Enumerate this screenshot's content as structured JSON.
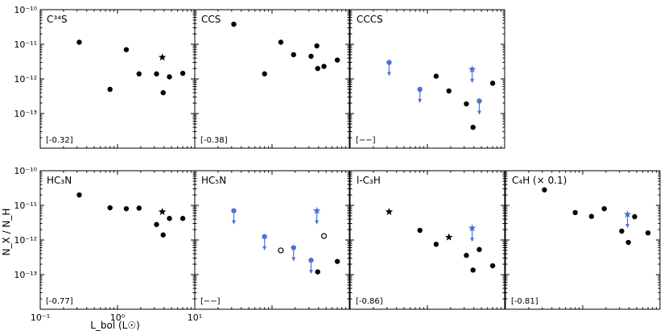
{
  "figure": {
    "xlabel": "L_bol (L☉)",
    "ylabel": "N_X / N_H"
  },
  "colors": {
    "detection": "#000000",
    "upper_limit": "#4a72d8"
  },
  "chart_data": [
    {
      "type": "scatter",
      "title": "C³⁴S",
      "note": "[-0.32]",
      "xscale": "log",
      "yscale": "log",
      "xlim": [
        0.1,
        10
      ],
      "ylim": [
        1e-14,
        1e-10
      ],
      "xticks": [
        0.1,
        1,
        10
      ],
      "xticklabels": [
        "10⁻¹",
        "10⁰",
        "10¹"
      ],
      "show_xticklabels": false,
      "yticks": [
        1e-13,
        1e-12,
        1e-11,
        1e-10
      ],
      "yticklabels": [
        "10⁻¹³",
        "10⁻¹²",
        "10⁻¹¹",
        "10⁻¹⁰"
      ],
      "show_yticklabels": true,
      "points": [
        {
          "x": 0.32,
          "y": 1.15e-11,
          "marker": "circle"
        },
        {
          "x": 0.8,
          "y": 5e-13,
          "marker": "circle"
        },
        {
          "x": 1.3,
          "y": 7e-12,
          "marker": "circle"
        },
        {
          "x": 1.9,
          "y": 1.4e-12,
          "marker": "circle"
        },
        {
          "x": 3.2,
          "y": 1.4e-12,
          "marker": "circle"
        },
        {
          "x": 3.8,
          "y": 4.2e-12,
          "marker": "star"
        },
        {
          "x": 3.9,
          "y": 4e-13,
          "marker": "circle"
        },
        {
          "x": 4.7,
          "y": 1.15e-12,
          "marker": "circle"
        },
        {
          "x": 7.0,
          "y": 1.45e-12,
          "marker": "circle"
        }
      ]
    },
    {
      "type": "scatter",
      "title": "CCS",
      "note": "[-0.38]",
      "xscale": "log",
      "yscale": "log",
      "xlim": [
        0.1,
        10
      ],
      "ylim": [
        1e-14,
        1e-10
      ],
      "xticks": [
        0.1,
        1,
        10
      ],
      "xticklabels": [
        "10⁻¹",
        "10⁰",
        "10¹"
      ],
      "show_xticklabels": false,
      "yticks": [
        1e-13,
        1e-12,
        1e-11,
        1e-10
      ],
      "yticklabels": [
        "10⁻¹³",
        "10⁻¹²",
        "10⁻¹¹",
        "10⁻¹⁰"
      ],
      "show_yticklabels": false,
      "points": [
        {
          "x": 0.32,
          "y": 3.8e-11,
          "marker": "circle"
        },
        {
          "x": 0.8,
          "y": 1.4e-12,
          "marker": "circle"
        },
        {
          "x": 1.3,
          "y": 1.15e-11,
          "marker": "circle"
        },
        {
          "x": 1.9,
          "y": 5e-12,
          "marker": "circle"
        },
        {
          "x": 3.2,
          "y": 4.5e-12,
          "marker": "circle"
        },
        {
          "x": 3.8,
          "y": 9e-12,
          "marker": "circle"
        },
        {
          "x": 3.9,
          "y": 2e-12,
          "marker": "circle"
        },
        {
          "x": 4.7,
          "y": 2.3e-12,
          "marker": "circle"
        },
        {
          "x": 7.0,
          "y": 3.5e-12,
          "marker": "circle"
        }
      ]
    },
    {
      "type": "scatter",
      "title": "CCCS",
      "note": "[−−]",
      "xscale": "log",
      "yscale": "log",
      "xlim": [
        0.1,
        10
      ],
      "ylim": [
        1e-14,
        1e-10
      ],
      "xticks": [
        0.1,
        1,
        10
      ],
      "xticklabels": [
        "10⁻¹",
        "10⁰",
        "10¹"
      ],
      "show_xticklabels": false,
      "yticks": [
        1e-13,
        1e-12,
        1e-11,
        1e-10
      ],
      "yticklabels": [
        "10⁻¹³",
        "10⁻¹²",
        "10⁻¹¹",
        "10⁻¹⁰"
      ],
      "show_yticklabels": false,
      "points": [
        {
          "x": 0.32,
          "y": 3e-12,
          "marker": "circle",
          "limit": "upper"
        },
        {
          "x": 0.8,
          "y": 5e-13,
          "marker": "circle",
          "limit": "upper"
        },
        {
          "x": 1.3,
          "y": 1.2e-12,
          "marker": "circle"
        },
        {
          "x": 1.9,
          "y": 4.5e-13,
          "marker": "circle"
        },
        {
          "x": 3.2,
          "y": 1.9e-13,
          "marker": "circle"
        },
        {
          "x": 3.8,
          "y": 1.9e-12,
          "marker": "star",
          "limit": "upper"
        },
        {
          "x": 3.9,
          "y": 4e-14,
          "marker": "circle"
        },
        {
          "x": 4.7,
          "y": 2.3e-13,
          "marker": "circle",
          "limit": "upper"
        },
        {
          "x": 7.0,
          "y": 7.5e-13,
          "marker": "circle"
        }
      ]
    },
    {
      "type": "scatter",
      "title": "HC₃N",
      "note": "[-0.77]",
      "xscale": "log",
      "yscale": "log",
      "xlim": [
        0.1,
        10
      ],
      "ylim": [
        1e-14,
        1e-10
      ],
      "xticks": [
        0.1,
        1,
        10
      ],
      "xticklabels": [
        "10⁻¹",
        "10⁰",
        "10¹"
      ],
      "show_xticklabels": true,
      "yticks": [
        1e-13,
        1e-12,
        1e-11,
        1e-10
      ],
      "yticklabels": [
        "10⁻¹³",
        "10⁻¹²",
        "10⁻¹¹",
        "10⁻¹⁰"
      ],
      "show_yticklabels": true,
      "points": [
        {
          "x": 0.32,
          "y": 2e-11,
          "marker": "circle"
        },
        {
          "x": 0.8,
          "y": 8.5e-12,
          "marker": "circle"
        },
        {
          "x": 1.3,
          "y": 8e-12,
          "marker": "circle"
        },
        {
          "x": 1.9,
          "y": 8.3e-12,
          "marker": "circle"
        },
        {
          "x": 3.2,
          "y": 2.8e-12,
          "marker": "circle"
        },
        {
          "x": 3.8,
          "y": 6.5e-12,
          "marker": "star"
        },
        {
          "x": 3.9,
          "y": 1.4e-12,
          "marker": "circle"
        },
        {
          "x": 4.7,
          "y": 4.2e-12,
          "marker": "circle"
        },
        {
          "x": 7.0,
          "y": 4.2e-12,
          "marker": "circle"
        }
      ]
    },
    {
      "type": "scatter",
      "title": "HC₅N",
      "note": "[−−]",
      "xscale": "log",
      "yscale": "log",
      "xlim": [
        0.1,
        10
      ],
      "ylim": [
        1e-14,
        1e-10
      ],
      "xticks": [
        0.1,
        1,
        10
      ],
      "xticklabels": [
        "10⁻¹",
        "10⁰",
        "10¹"
      ],
      "show_xticklabels": false,
      "yticks": [
        1e-13,
        1e-12,
        1e-11,
        1e-10
      ],
      "yticklabels": [
        "10⁻¹³",
        "10⁻¹²",
        "10⁻¹¹",
        "10⁻¹⁰"
      ],
      "show_yticklabels": false,
      "points": [
        {
          "x": 0.32,
          "y": 7e-12,
          "marker": "circle",
          "limit": "upper"
        },
        {
          "x": 0.8,
          "y": 1.25e-12,
          "marker": "circle",
          "limit": "upper"
        },
        {
          "x": 1.3,
          "y": 5e-13,
          "marker": "circle",
          "open": true
        },
        {
          "x": 1.9,
          "y": 6e-13,
          "marker": "circle",
          "limit": "upper"
        },
        {
          "x": 3.2,
          "y": 2.6e-13,
          "marker": "circle",
          "limit": "upper"
        },
        {
          "x": 3.8,
          "y": 7e-12,
          "marker": "star",
          "limit": "upper"
        },
        {
          "x": 3.9,
          "y": 1.2e-13,
          "marker": "circle"
        },
        {
          "x": 4.7,
          "y": 1.3e-12,
          "marker": "circle",
          "open": true
        },
        {
          "x": 7.0,
          "y": 2.4e-13,
          "marker": "circle"
        }
      ]
    },
    {
      "type": "scatter",
      "title": "l-C₃H",
      "note": "[-0.86]",
      "xscale": "log",
      "yscale": "log",
      "xlim": [
        0.1,
        10
      ],
      "ylim": [
        1e-14,
        1e-10
      ],
      "xticks": [
        0.1,
        1,
        10
      ],
      "xticklabels": [
        "10⁻¹",
        "10⁰",
        "10¹"
      ],
      "show_xticklabels": false,
      "yticks": [
        1e-13,
        1e-12,
        1e-11,
        1e-10
      ],
      "yticklabels": [
        "10⁻¹³",
        "10⁻¹²",
        "10⁻¹¹",
        "10⁻¹⁰"
      ],
      "show_yticklabels": false,
      "points": [
        {
          "x": 0.32,
          "y": 6.5e-12,
          "marker": "star"
        },
        {
          "x": 0.8,
          "y": 1.9e-12,
          "marker": "circle"
        },
        {
          "x": 1.3,
          "y": 7.5e-13,
          "marker": "circle"
        },
        {
          "x": 1.9,
          "y": 1.2e-12,
          "marker": "star"
        },
        {
          "x": 3.2,
          "y": 3.6e-13,
          "marker": "circle"
        },
        {
          "x": 3.8,
          "y": 2.2e-12,
          "marker": "star",
          "limit": "upper"
        },
        {
          "x": 3.9,
          "y": 1.35e-13,
          "marker": "circle"
        },
        {
          "x": 4.7,
          "y": 5.3e-13,
          "marker": "circle"
        },
        {
          "x": 7.0,
          "y": 1.8e-13,
          "marker": "circle"
        }
      ]
    },
    {
      "type": "scatter",
      "title": "C₄H (× 0.1)",
      "note": "[-0.81]",
      "xscale": "log",
      "yscale": "log",
      "xlim": [
        0.1,
        10
      ],
      "ylim": [
        1e-14,
        1e-10
      ],
      "xticks": [
        0.1,
        1,
        10
      ],
      "xticklabels": [
        "10⁻¹",
        "10⁰",
        "10¹"
      ],
      "show_xticklabels": false,
      "yticks": [
        1e-13,
        1e-12,
        1e-11,
        1e-10
      ],
      "yticklabels": [
        "10⁻¹³",
        "10⁻¹²",
        "10⁻¹¹",
        "10⁻¹⁰"
      ],
      "show_yticklabels": false,
      "points": [
        {
          "x": 0.32,
          "y": 2.8e-11,
          "marker": "circle"
        },
        {
          "x": 0.8,
          "y": 6.2e-12,
          "marker": "circle"
        },
        {
          "x": 1.3,
          "y": 4.8e-12,
          "marker": "circle"
        },
        {
          "x": 1.9,
          "y": 8e-12,
          "marker": "circle"
        },
        {
          "x": 3.2,
          "y": 1.8e-12,
          "marker": "circle"
        },
        {
          "x": 3.8,
          "y": 5.5e-12,
          "marker": "star",
          "limit": "upper"
        },
        {
          "x": 3.9,
          "y": 8.5e-13,
          "marker": "circle"
        },
        {
          "x": 4.7,
          "y": 4.7e-12,
          "marker": "circle"
        },
        {
          "x": 7.0,
          "y": 1.6e-12,
          "marker": "circle"
        }
      ]
    }
  ]
}
